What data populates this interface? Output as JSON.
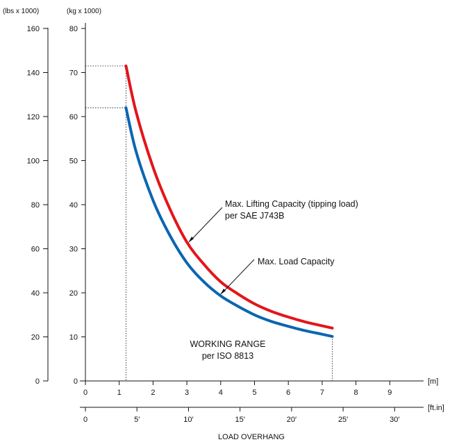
{
  "chart_data": {
    "type": "line",
    "title": "",
    "xlabel": "LOAD OVERHANG",
    "x_unit_primary": "[m]",
    "x_unit_secondary": "[ft.in]",
    "y_unit_kg": "(kg x 1000)",
    "y_unit_lbs": "(lbs x 1000)",
    "xlim_m": [
      0,
      9
    ],
    "ylim_kg": [
      0,
      80
    ],
    "ylim_lbs": [
      0,
      160
    ],
    "x_ticks_m": [
      "0",
      "1",
      "2",
      "3",
      "4",
      "5",
      "6",
      "7",
      "8",
      "9"
    ],
    "x_ticks_ft": [
      "0",
      "5′",
      "10′",
      "15′",
      "20′",
      "25′",
      "30′"
    ],
    "x_tick_values_ft": [
      0,
      5,
      10,
      15,
      20,
      25,
      30
    ],
    "y_ticks_kg": [
      "0",
      "10",
      "20",
      "30",
      "40",
      "50",
      "60",
      "70",
      "80"
    ],
    "y_ticks_lbs": [
      "0",
      "20",
      "40",
      "60",
      "80",
      "100",
      "120",
      "140",
      "160"
    ],
    "grid": false,
    "series": [
      {
        "name": "Max. Lifting Capacity (tipping load) per SAE J743B",
        "color": "#e3151b",
        "x": [
          1.2,
          1.5,
          2.0,
          2.5,
          3.0,
          3.5,
          4.0,
          4.5,
          5.0,
          5.5,
          6.0,
          6.5,
          7.0,
          7.3
        ],
        "values": [
          71.5,
          61.0,
          48.5,
          39.0,
          31.5,
          26.5,
          22.5,
          19.8,
          17.5,
          15.8,
          14.5,
          13.4,
          12.5,
          12.0
        ]
      },
      {
        "name": "Max. Load Capacity",
        "color": "#0a66b2",
        "x": [
          1.2,
          1.5,
          2.0,
          2.5,
          3.0,
          3.5,
          4.0,
          4.5,
          5.0,
          5.5,
          6.0,
          6.5,
          7.0,
          7.3
        ],
        "values": [
          62.0,
          52.0,
          41.0,
          33.0,
          26.8,
          22.5,
          19.3,
          17.0,
          15.0,
          13.5,
          12.4,
          11.4,
          10.6,
          10.1
        ]
      }
    ],
    "reference_lines": {
      "x_min": 1.2,
      "x_max": 7.3,
      "y_red_kg": 71.5,
      "y_blue_kg": 62.0
    },
    "annotations": {
      "lifting_line1": "Max. Lifting Capacity (tipping load)",
      "lifting_line2": "per SAE J743B",
      "load_capacity": "Max. Load Capacity",
      "working_range_line1": "WORKING RANGE",
      "working_range_line2": "per ISO 8813"
    }
  }
}
